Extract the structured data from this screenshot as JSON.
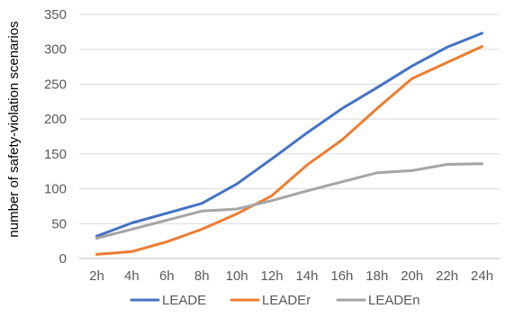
{
  "chart_data": {
    "type": "line",
    "title": "",
    "xlabel": "",
    "ylabel": "number of safety-violation scenarios",
    "categories": [
      "2h",
      "4h",
      "6h",
      "8h",
      "10h",
      "12h",
      "14h",
      "16h",
      "18h",
      "20h",
      "22h",
      "24h"
    ],
    "yticks": [
      "0",
      "50",
      "100",
      "150",
      "200",
      "250",
      "300",
      "350"
    ],
    "ylim": [
      0,
      350
    ],
    "grid": true,
    "legend_position": "bottom",
    "series": [
      {
        "name": "LEADE",
        "color": "#4472C4",
        "values": [
          32,
          51,
          65,
          79,
          107,
          143,
          180,
          215,
          245,
          276,
          303,
          323
        ]
      },
      {
        "name": "LEADEr",
        "color": "#ED7D31",
        "values": [
          6,
          10,
          24,
          42,
          64,
          90,
          134,
          170,
          215,
          258,
          281,
          304
        ]
      },
      {
        "name": "LEADEn",
        "color": "#A5A5A5",
        "values": [
          29,
          42,
          55,
          68,
          71,
          83,
          97,
          110,
          123,
          126,
          135,
          136
        ]
      }
    ]
  }
}
